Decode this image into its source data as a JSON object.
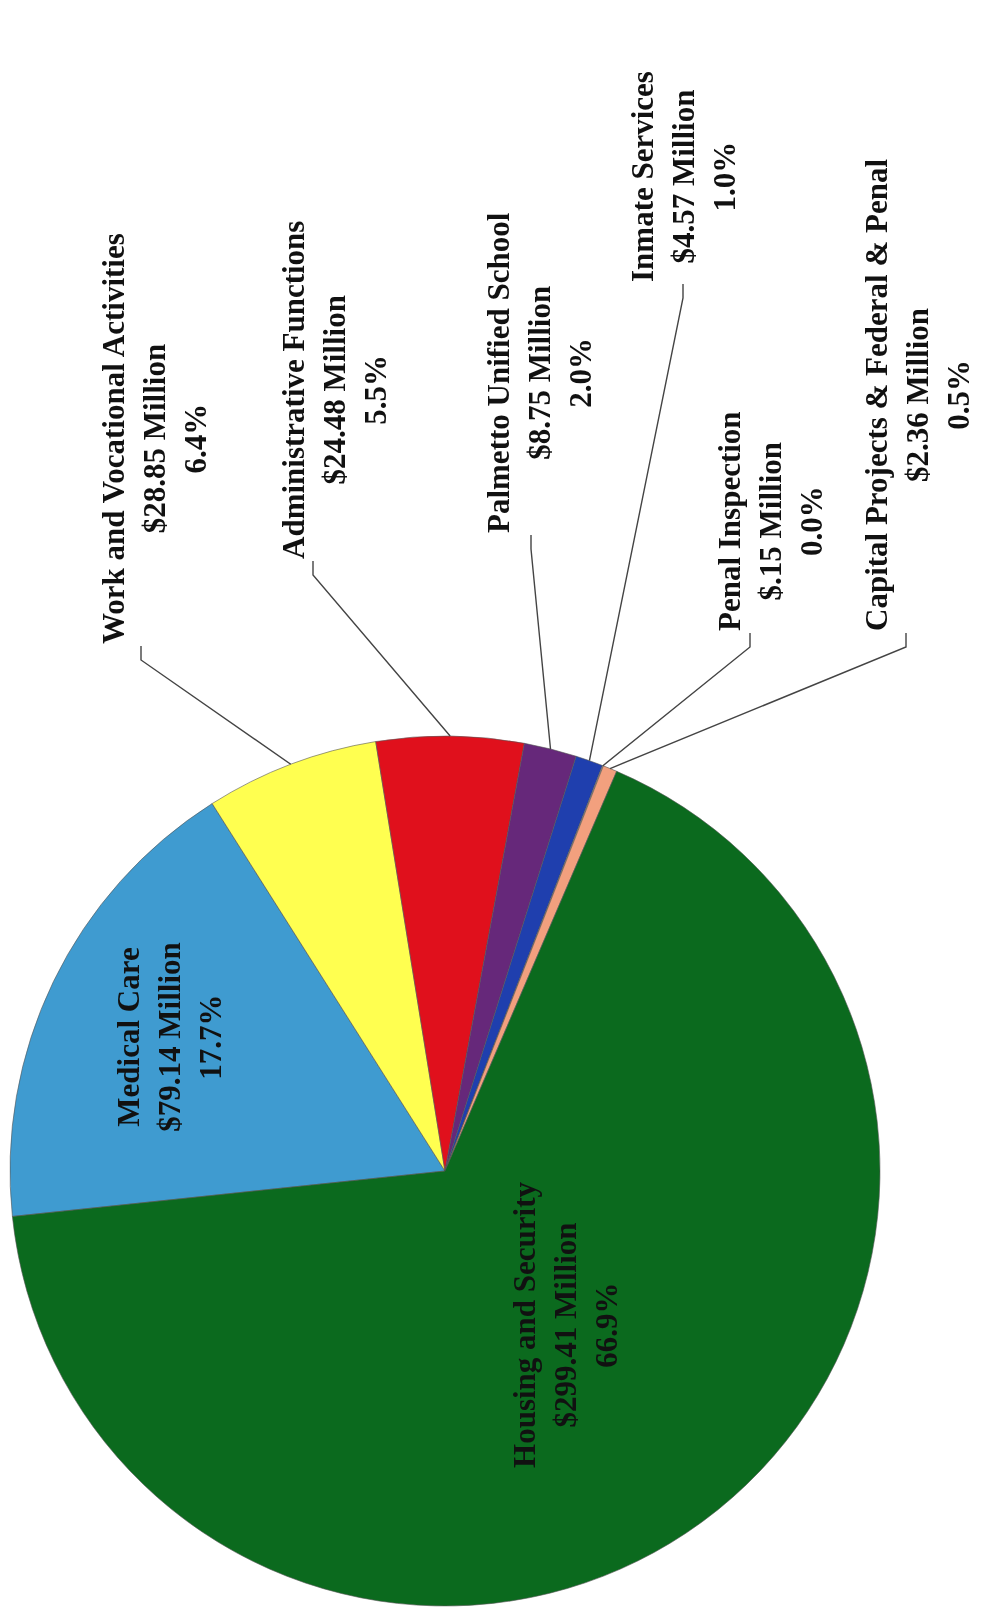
{
  "chart_data": {
    "type": "pie",
    "categories": [
      "Medical Care",
      "Work and Vocational Activities",
      "Administrative Functions",
      "Palmetto Unified School",
      "Inmate Services",
      "Penal Inspection",
      "Capital Projects & Federal & Penal",
      "Housing and Security"
    ],
    "values": [
      79.14,
      28.85,
      24.48,
      8.75,
      4.57,
      0.15,
      2.36,
      299.41
    ],
    "colors": [
      "#3f9bd0",
      "#ffff50",
      "#e0101c",
      "#66287a",
      "#1f3fae",
      "#b0b0b0",
      "#f2a07e",
      "#0b6a1e"
    ],
    "value_labels": [
      "$79.14 Million\n17.7%",
      "$28.85 Million\n6.4%",
      "$24.48 Million\n5.5%",
      "$8.75 Million\n2.0%",
      "$4.57 Million\n1.0%",
      "$.15 Million\n0.0%",
      "$2.36 Million\n0.5%",
      "$299.41 Million\n66.9%"
    ]
  }
}
